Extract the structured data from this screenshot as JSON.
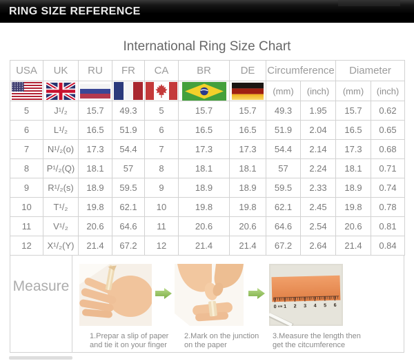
{
  "top_bar": {
    "title": "RING SIZE REFERENCE"
  },
  "chart_title": "International Ring Size Chart",
  "table": {
    "country_columns": [
      {
        "label": "USA",
        "flag_icon": "us-flag"
      },
      {
        "label": "UK",
        "flag_icon": "uk-flag"
      },
      {
        "label": "RU",
        "flag_icon": "ru-flag"
      },
      {
        "label": "FR",
        "flag_icon": "fr-flag"
      },
      {
        "label": "CA",
        "flag_icon": "ca-flag"
      },
      {
        "label": "BR",
        "flag_icon": "br-flag"
      },
      {
        "label": "DE",
        "flag_icon": "de-flag"
      }
    ],
    "group_columns": [
      {
        "label": "Circumference"
      },
      {
        "label": "Diameter"
      }
    ],
    "unit_headers": [
      "(mm)",
      "(inch)",
      "(mm)",
      "(inch)"
    ]
  },
  "chart_data": {
    "type": "table",
    "title": "International Ring Size Chart",
    "columns": [
      "USA",
      "UK",
      "RU",
      "FR",
      "CA",
      "BR",
      "DE",
      "Circumference (mm)",
      "Circumference (inch)",
      "Diameter (mm)",
      "Diameter (inch)"
    ],
    "rows": [
      [
        "5",
        "J¹/₂",
        "15.7",
        "49.3",
        "5",
        "15.7",
        "15.7",
        "49.3",
        "1.95",
        "15.7",
        "0.62"
      ],
      [
        "6",
        "L¹/₂",
        "16.5",
        "51.9",
        "6",
        "16.5",
        "16.5",
        "51.9",
        "2.04",
        "16.5",
        "0.65"
      ],
      [
        "7",
        "N¹/₂(o)",
        "17.3",
        "54.4",
        "7",
        "17.3",
        "17.3",
        "54.4",
        "2.14",
        "17.3",
        "0.68"
      ],
      [
        "8",
        "P¹/₂(Q)",
        "18.1",
        "57",
        "8",
        "18.1",
        "18.1",
        "57",
        "2.24",
        "18.1",
        "0.71"
      ],
      [
        "9",
        "R¹/₂(s)",
        "18.9",
        "59.5",
        "9",
        "18.9",
        "18.9",
        "59.5",
        "2.33",
        "18.9",
        "0.74"
      ],
      [
        "10",
        "T¹/₂",
        "19.8",
        "62.1",
        "10",
        "19.8",
        "19.8",
        "62.1",
        "2.45",
        "19.8",
        "0.78"
      ],
      [
        "11",
        "V¹/₂",
        "20.6",
        "64.6",
        "11",
        "20.6",
        "20.6",
        "64.6",
        "2.54",
        "20.6",
        "0.81"
      ],
      [
        "12",
        "X¹/₂(Y)",
        "21.4",
        "67.2",
        "12",
        "21.4",
        "21.4",
        "67.2",
        "2.64",
        "21.4",
        "0.84"
      ]
    ]
  },
  "measure": {
    "label": "Measure",
    "steps": [
      {
        "line1": "1.Prepar a slip of paper",
        "line2": "and tie it on your finger",
        "photo_icon": "hand-with-paper-strip-photo"
      },
      {
        "line1": "2.Mark on the junction",
        "line2": "on the paper",
        "photo_icon": "marking-paper-photo"
      },
      {
        "line1": "3.Measure the length then",
        "line2": "get the citcumference",
        "photo_icon": "ruler-measure-photo"
      }
    ],
    "ruler_marks": [
      "0",
      "cm",
      "1",
      "2",
      "3",
      "4",
      "5",
      "6"
    ],
    "arrow_icon": "green-arrow-right-icon"
  },
  "colors": {
    "top_bar_bg": "#000000",
    "table_border": "#d2d2d2",
    "table_text": "#7a7a7a",
    "arrow_green": "#8cbf54",
    "ruler_strip_orange": "#e98f55"
  }
}
